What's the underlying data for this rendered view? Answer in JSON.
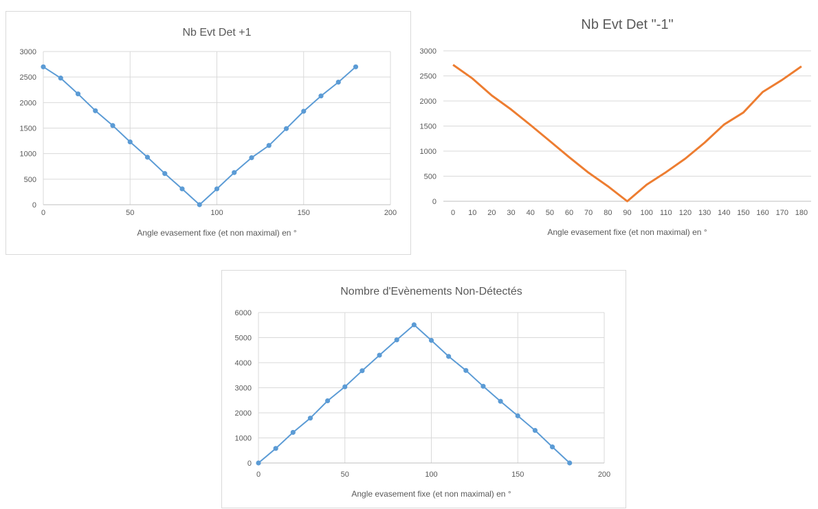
{
  "chart_data": [
    {
      "type": "scatter",
      "title": "Nb Evt Det +1",
      "xlabel": "Angle evasement fixe (et non maximal) en °",
      "ylabel": "",
      "xlim": [
        0,
        200
      ],
      "ylim": [
        0,
        3000
      ],
      "xticks": [
        "0",
        "50",
        "100",
        "150",
        "200"
      ],
      "yticks": [
        "0",
        "500",
        "1000",
        "1500",
        "2000",
        "2500",
        "3000"
      ],
      "grid": true,
      "legend": "none",
      "color": "#5b9bd5",
      "x": [
        0,
        10,
        20,
        30,
        40,
        50,
        60,
        70,
        80,
        90,
        100,
        110,
        120,
        130,
        140,
        150,
        160,
        170,
        180
      ],
      "y": [
        2700,
        2480,
        2170,
        1840,
        1550,
        1230,
        930,
        610,
        310,
        0,
        310,
        630,
        920,
        1160,
        1490,
        1830,
        2130,
        2400,
        2700
      ]
    },
    {
      "type": "line",
      "title": "Nb Evt Det \"-1\"",
      "xlabel": "Angle evasement fixe (et non maximal) en °",
      "ylabel": "",
      "categories": [
        "0",
        "10",
        "20",
        "30",
        "40",
        "50",
        "60",
        "70",
        "80",
        "90",
        "100",
        "110",
        "120",
        "130",
        "140",
        "150",
        "160",
        "170",
        "180"
      ],
      "values": [
        2720,
        2450,
        2110,
        1830,
        1520,
        1200,
        880,
        570,
        300,
        0,
        330,
        580,
        850,
        1170,
        1530,
        1770,
        2180,
        2420,
        2690
      ],
      "ylim": [
        0,
        3000
      ],
      "yticks": [
        "0",
        "500",
        "1000",
        "1500",
        "2000",
        "2500",
        "3000"
      ],
      "grid": true,
      "legend": "none",
      "color": "#ed7d31"
    },
    {
      "type": "scatter",
      "title": "Nombre d'Evènements Non-Détectés",
      "xlabel": "Angle evasement fixe (et non maximal) en °",
      "ylabel": "",
      "xlim": [
        0,
        200
      ],
      "ylim": [
        0,
        6000
      ],
      "xticks": [
        "0",
        "50",
        "100",
        "150",
        "200"
      ],
      "yticks": [
        "0",
        "1000",
        "2000",
        "3000",
        "4000",
        "5000",
        "6000"
      ],
      "grid": true,
      "legend": "none",
      "color": "#5b9bd5",
      "x": [
        0,
        10,
        20,
        30,
        40,
        50,
        60,
        70,
        80,
        90,
        100,
        110,
        120,
        130,
        140,
        150,
        160,
        170,
        180
      ],
      "y": [
        0,
        580,
        1220,
        1790,
        2480,
        3040,
        3680,
        4300,
        4910,
        5510,
        4890,
        4250,
        3690,
        3060,
        2460,
        1880,
        1300,
        640,
        0
      ]
    }
  ]
}
